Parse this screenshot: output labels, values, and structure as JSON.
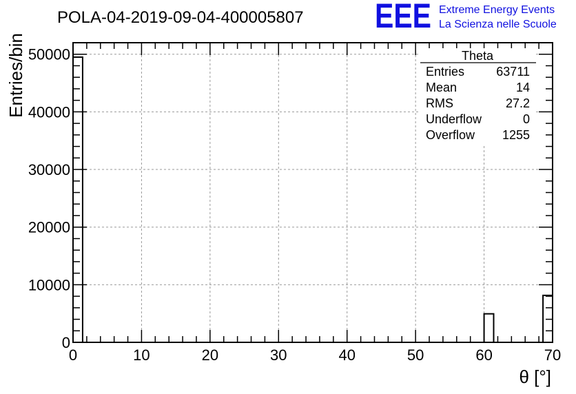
{
  "chart_data": {
    "type": "bar",
    "title": "POLA-04-2019-09-04-400005807",
    "xlabel": "θ [°]",
    "ylabel": "Entries/bin",
    "xlim": [
      0,
      70
    ],
    "ylim": [
      0,
      52000
    ],
    "grid": true,
    "x_ticks": [
      0,
      10,
      20,
      30,
      40,
      50,
      60,
      70
    ],
    "y_ticks": [
      0,
      10000,
      20000,
      30000,
      40000,
      50000
    ],
    "bins": [
      {
        "x0": 0,
        "x1": 1.4,
        "value": 49500
      },
      {
        "x0": 60,
        "x1": 61.4,
        "value": 4950
      },
      {
        "x0": 68.6,
        "x1": 70,
        "value": 8150
      }
    ],
    "stats": {
      "name": "Theta",
      "rows": [
        {
          "label": "Entries",
          "value": "63711"
        },
        {
          "label": "Mean",
          "value": "14"
        },
        {
          "label": "RMS",
          "value": "27.2"
        },
        {
          "label": "Underflow",
          "value": "0"
        },
        {
          "label": "Overflow",
          "value": "1255"
        }
      ]
    }
  },
  "logo": {
    "mark": "EEE",
    "line1": "Extreme Energy Events",
    "line2": "La Scienza nelle Scuole",
    "color": "#1010e0"
  }
}
